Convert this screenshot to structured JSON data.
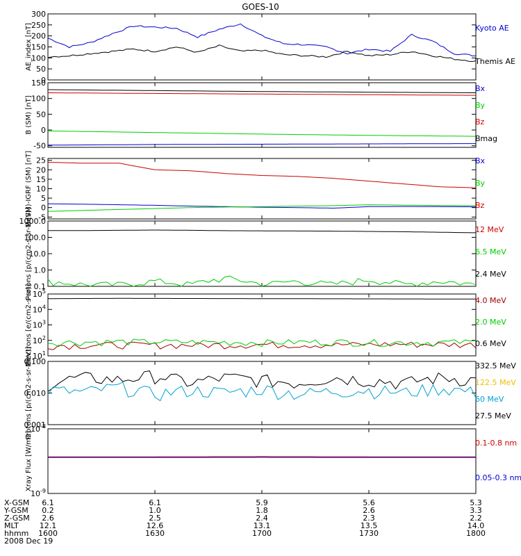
{
  "title": "GOES-10",
  "x_ticks": [
    "1600",
    "1630",
    "1700",
    "1730",
    "1800"
  ],
  "info_rows": [
    {
      "label": "X-GSM",
      "values": [
        "6.1",
        "6.1",
        "5.9",
        "5.6",
        "5.3"
      ]
    },
    {
      "label": "Y-GSM",
      "values": [
        "0.2",
        "1.0",
        "1.8",
        "2.6",
        "3.3"
      ]
    },
    {
      "label": "Z-GSM",
      "values": [
        "2.6",
        "2.5",
        "2.4",
        "2.3",
        "2.2"
      ]
    },
    {
      "label": "MLT",
      "values": [
        "12.1",
        "12.6",
        "13.1",
        "13.5",
        "14.0"
      ]
    },
    {
      "label": "hhmm",
      "values": [
        "1600",
        "1630",
        "1700",
        "1730",
        "1800"
      ]
    }
  ],
  "date": "2008 Dec 19",
  "colors": {
    "black": "#000000",
    "blue": "#0000cc",
    "green": "#00cc00",
    "red": "#cc0000",
    "cyan": "#00a0d0",
    "yellow": "#f0c000",
    "darkred": "#a00000"
  },
  "chart_data": [
    {
      "type": "line",
      "ylabel": "AE_index [nT]",
      "ylim": [
        0,
        300
      ],
      "y_ticks": [
        "0",
        "50",
        "100",
        "150",
        "200",
        "250",
        "300"
      ],
      "x": [
        0,
        6,
        12,
        18,
        24,
        30,
        36,
        42,
        48,
        54,
        60,
        66,
        72,
        78,
        84,
        90,
        96,
        102,
        108,
        114,
        120
      ],
      "series": [
        {
          "name": "Kyoto AE",
          "color": "#0000cc",
          "values": [
            190,
            150,
            170,
            210,
            245,
            240,
            235,
            195,
            230,
            255,
            200,
            165,
            160,
            150,
            120,
            140,
            130,
            205,
            175,
            120,
            110
          ]
        },
        {
          "name": "Themis AE",
          "color": "#000000",
          "values": [
            105,
            110,
            120,
            130,
            140,
            130,
            150,
            125,
            155,
            130,
            135,
            115,
            110,
            105,
            130,
            110,
            115,
            130,
            110,
            95,
            85
          ]
        }
      ]
    },
    {
      "type": "line",
      "ylabel": "B (SM) [nT]",
      "ylim": [
        -55,
        150
      ],
      "y_ticks": [
        "-50",
        "0",
        "50",
        "100",
        "150"
      ],
      "x": [
        0,
        30,
        60,
        90,
        120
      ],
      "series": [
        {
          "name": "Bx",
          "color": "#0000cc",
          "values": [
            -48,
            -46,
            -45,
            -44,
            -43
          ]
        },
        {
          "name": "By",
          "color": "#00cc00",
          "values": [
            -3,
            -8,
            -13,
            -17,
            -20
          ]
        },
        {
          "name": "Bz",
          "color": "#cc0000",
          "values": [
            118,
            116,
            114,
            112,
            110
          ]
        },
        {
          "name": "Bmag",
          "color": "#000000",
          "values": [
            128,
            125,
            122,
            120,
            118
          ]
        }
      ]
    },
    {
      "type": "line",
      "ylabel": "B (SM)-IGRF (SM) [nT]",
      "ylim": [
        -6,
        26
      ],
      "y_ticks": [
        "-5",
        "0",
        "5",
        "10",
        "15",
        "20",
        "25"
      ],
      "x": [
        0,
        10,
        20,
        30,
        40,
        50,
        60,
        70,
        80,
        90,
        100,
        110,
        120
      ],
      "series": [
        {
          "name": "Bx",
          "color": "#0000cc",
          "values": [
            2,
            1.8,
            1.5,
            1.2,
            0.8,
            0.5,
            0.2,
            0.0,
            -0.3,
            0.5,
            0.6,
            0.5,
            0.4
          ]
        },
        {
          "name": "By",
          "color": "#00cc00",
          "values": [
            -2,
            -1.5,
            -1,
            -0.5,
            0,
            0.3,
            0.5,
            0.8,
            1.0,
            1.5,
            1.3,
            1.1,
            1.0
          ]
        },
        {
          "name": "Bz",
          "color": "#cc0000",
          "values": [
            24,
            23.5,
            23.5,
            20,
            19.5,
            18,
            17,
            16.5,
            15.5,
            14,
            12.5,
            11,
            10.5
          ]
        }
      ]
    },
    {
      "type": "line",
      "ylabel": "Protons [p/(cm2-s-sr-MeV)]",
      "yscale": "log",
      "ylim": [
        0.1,
        1000
      ],
      "y_ticks": [
        "0.1",
        "1.0",
        "10.0",
        "100.0",
        "1000.0"
      ],
      "x": [
        0,
        10,
        20,
        30,
        40,
        50,
        60,
        70,
        80,
        90,
        100,
        110,
        120
      ],
      "series": [
        {
          "name": "12 MeV",
          "color": "#cc0000",
          "values": [
            null,
            null,
            null,
            null,
            null,
            null,
            null,
            null,
            null,
            null,
            null,
            null,
            null
          ]
        },
        {
          "name": "6.5 MeV",
          "color": "#00cc00",
          "values": [
            0.2,
            0.12,
            0.12,
            0.2,
            0.12,
            0.3,
            0.12,
            0.2,
            0.12,
            0.25,
            0.12,
            0.2,
            0.12
          ]
        },
        {
          "name": "2.4 MeV",
          "color": "#000000",
          "values": [
            260,
            260,
            270,
            280,
            270,
            255,
            250,
            245,
            240,
            230,
            220,
            205,
            190
          ]
        }
      ]
    },
    {
      "type": "line",
      "ylabel": "Electrons [e/(cm2-s-sr)]",
      "yscale": "log",
      "ylim": [
        10,
        100000
      ],
      "y_ticks": [
        "10^1",
        "10^2",
        "10^3",
        "10^4",
        "10^5"
      ],
      "x": [
        0,
        20,
        40,
        60,
        80,
        100,
        120
      ],
      "series": [
        {
          "name": "4.0 MeV",
          "color": "#a00000",
          "values": [
            45,
            50,
            48,
            52,
            50,
            55,
            52
          ]
        },
        {
          "name": "2.0 MeV",
          "color": "#00cc00",
          "values": [
            70,
            80,
            75,
            72,
            78,
            70,
            75
          ]
        },
        {
          "name": "0.6 MeV",
          "color": "#000000",
          "values": [
            50000,
            52000,
            51000,
            50000,
            49000,
            48000,
            47000
          ]
        }
      ]
    },
    {
      "type": "line",
      "ylabel": "Protons [p/(cm2-s-sr-MeV)]",
      "yscale": "log",
      "ylim": [
        0.001,
        0.1
      ],
      "y_ticks": [
        "0.001",
        "0.010",
        "0.100"
      ],
      "x": [
        0,
        10,
        20,
        30,
        40,
        50,
        60,
        70,
        80,
        90,
        100,
        110,
        120
      ],
      "series": [
        {
          "name": "332.5 MeV",
          "color": "#000000",
          "values": [
            0.02,
            0.03,
            0.025,
            0.035,
            0.02,
            0.03,
            0.025,
            0.02,
            0.03,
            0.025,
            0.02,
            0.03,
            0.025
          ]
        },
        {
          "name": "122.5 MeV",
          "color": "#f0c000",
          "values": [
            null,
            null,
            null,
            null,
            null,
            null,
            null,
            null,
            null,
            null,
            null,
            null,
            null
          ]
        },
        {
          "name": "60 MeV",
          "color": "#00a0d0",
          "values": [
            0.012,
            0.01,
            0.015,
            0.009,
            0.012,
            0.01,
            0.013,
            0.009,
            0.011,
            0.012,
            0.01,
            0.014,
            0.01
          ]
        },
        {
          "name": "27.5 MeV",
          "color": "#000000",
          "values": [
            null,
            null,
            null,
            null,
            null,
            null,
            null,
            null,
            null,
            null,
            null,
            null,
            null
          ]
        }
      ]
    },
    {
      "type": "line",
      "ylabel": "Xray Flux [W/m2]",
      "yscale": "log",
      "ylim": [
        1e-09,
        1e-08
      ],
      "y_ticks": [
        "10^-9",
        "10^-8"
      ],
      "x": [
        0,
        30,
        60,
        90,
        120
      ],
      "series": [
        {
          "name": "0.1-0.8 nm",
          "color": "#cc0000",
          "values": [
            3.7e-09,
            3.7e-09,
            3.72e-09,
            3.7e-09,
            3.7e-09
          ]
        },
        {
          "name": "0.05-0.3 nm",
          "color": "#0000cc",
          "values": [
            3.6e-09,
            3.6e-09,
            3.62e-09,
            3.6e-09,
            3.6e-09
          ]
        }
      ]
    }
  ]
}
